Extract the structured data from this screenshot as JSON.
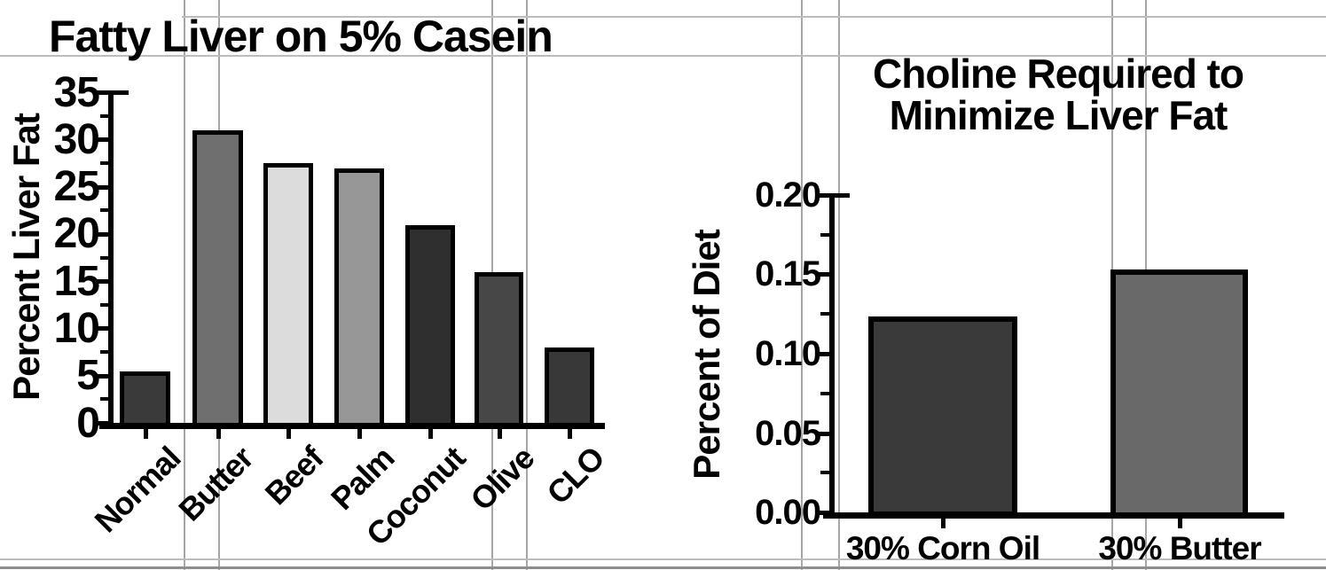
{
  "figure": {
    "background": "#ffffff",
    "axis_color": "#000000",
    "page_gridline_color": "#a6a6a6"
  },
  "chart_data": [
    {
      "type": "bar",
      "title": "Fatty Liver on 5% Casein",
      "ylabel": "Percent Liver Fat",
      "xlabel": "",
      "categories": [
        "Normal",
        "Butter",
        "Beef",
        "Palm",
        "Coconut",
        "Olive",
        "CLO"
      ],
      "values": [
        5,
        30.5,
        27,
        26.5,
        20.5,
        15.5,
        7.5
      ],
      "bar_colors": [
        "#3a3a3a",
        "#6f6f6f",
        "#dcdcdc",
        "#979797",
        "#2f2f2f",
        "#474747",
        "#383838"
      ],
      "ylim": [
        0,
        35
      ],
      "ytick_labels": [
        "0",
        "5",
        "10",
        "15",
        "20",
        "25",
        "30",
        "35"
      ],
      "ytick_major": 5,
      "ytick_minor": 2.5,
      "grid": false,
      "legend": "none",
      "xlabel_rotation": 45
    },
    {
      "type": "bar",
      "title": "Choline Required to Minimize Liver Fat",
      "title_lines": [
        "Choline Required to",
        "Minimize Liver Fat"
      ],
      "ylabel": "Percent of Diet",
      "xlabel": "",
      "categories": [
        "30% Corn Oil",
        "30% Butter"
      ],
      "values": [
        0.12,
        0.15
      ],
      "bar_colors": [
        "#3a3a3a",
        "#696969"
      ],
      "ylim": [
        0,
        0.2
      ],
      "ytick_labels": [
        "0.00",
        "0.05",
        "0.10",
        "0.15",
        "0.20"
      ],
      "ytick_major": 0.05,
      "ytick_minor": 0.025,
      "grid": false,
      "legend": "none",
      "xlabel_rotation": 0
    }
  ]
}
